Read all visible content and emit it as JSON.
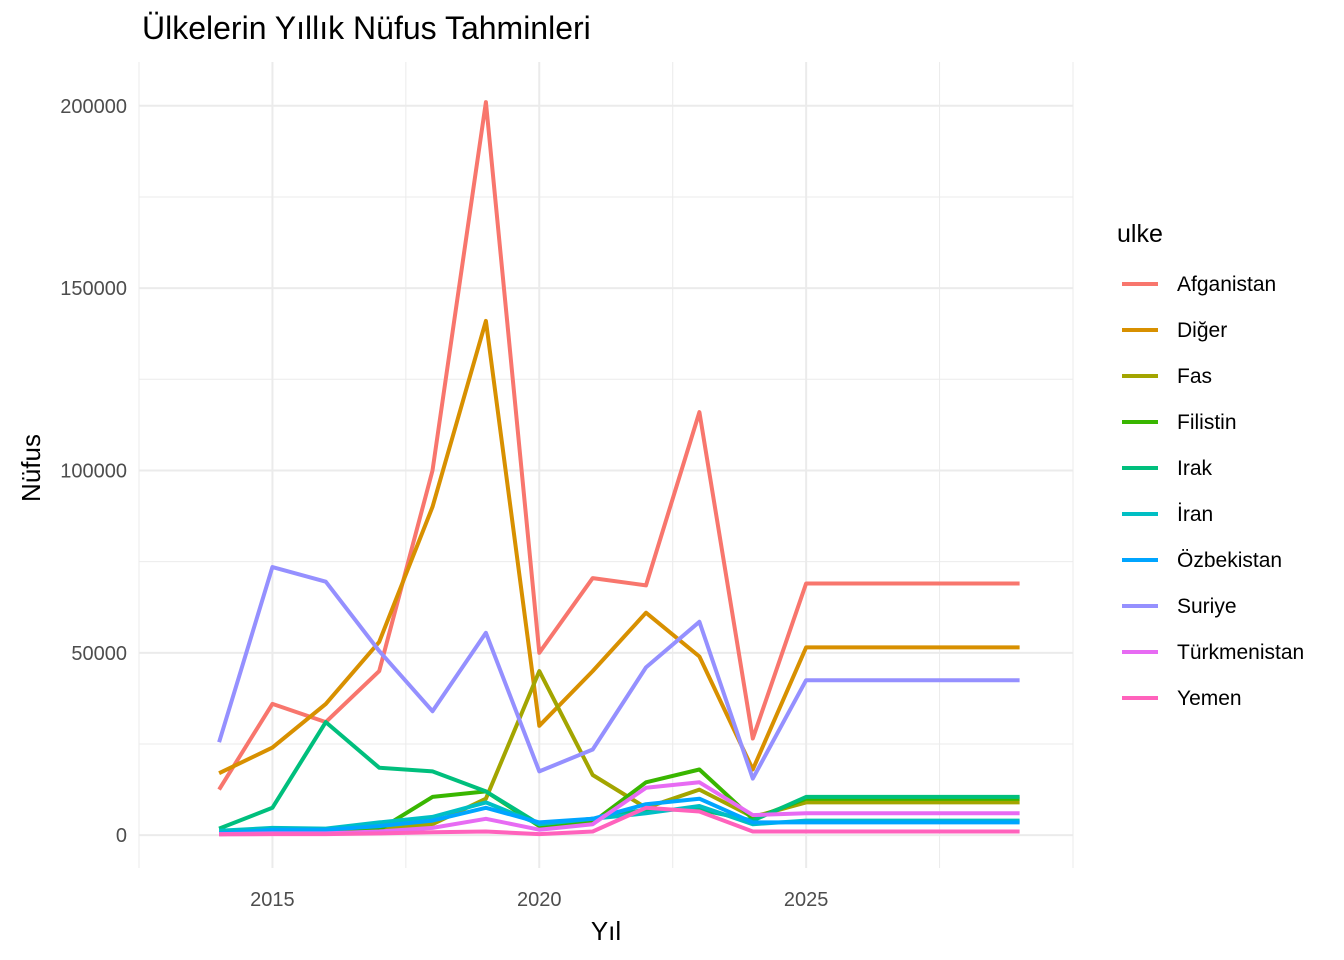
{
  "chart_data": {
    "type": "line",
    "title": "Ülkelerin Yıllık Nüfus Tahminleri",
    "xlabel": "Yıl",
    "ylabel": "Nüfus",
    "xlim": [
      2012.5,
      2030
    ],
    "ylim": [
      -9000,
      212000
    ],
    "x_ticks": [
      2015,
      2020,
      2025
    ],
    "y_ticks": [
      0,
      50000,
      100000,
      150000,
      200000
    ],
    "y_tick_labels": [
      "0",
      "50000",
      "100000",
      "150000",
      "200000"
    ],
    "grid": true,
    "legend_title": "ulke",
    "legend_position": "right",
    "x": [
      2014,
      2015,
      2016,
      2017,
      2018,
      2019,
      2020,
      2021,
      2022,
      2023,
      2024,
      2025,
      2026,
      2027,
      2028,
      2029
    ],
    "series": [
      {
        "name": "Afganistan",
        "color": "#F8766D",
        "values": [
          12500,
          36000,
          31000,
          45000,
          100000,
          201000,
          50000,
          70500,
          68500,
          116000,
          26500,
          69000,
          69000,
          69000,
          69000,
          69000
        ]
      },
      {
        "name": "Diğer",
        "color": "#D89000",
        "values": [
          17000,
          24000,
          36000,
          53000,
          90000,
          141000,
          30000,
          45000,
          61000,
          49000,
          18000,
          51500,
          51500,
          51500,
          51500,
          51500
        ]
      },
      {
        "name": "Fas",
        "color": "#A3A500",
        "values": [
          500,
          800,
          1000,
          1500,
          3000,
          10000,
          45000,
          16500,
          7500,
          12500,
          5000,
          9000,
          9000,
          9000,
          9000,
          9000
        ]
      },
      {
        "name": "Filistin",
        "color": "#39B600",
        "values": [
          300,
          500,
          800,
          1500,
          10500,
          12000,
          2500,
          3500,
          14500,
          18000,
          4500,
          10000,
          10000,
          10000,
          10000,
          10000
        ]
      },
      {
        "name": "Irak",
        "color": "#00BF7D",
        "values": [
          1800,
          7500,
          31000,
          18500,
          17500,
          12000,
          3000,
          4500,
          7000,
          7000,
          4000,
          10500,
          10500,
          10500,
          10500,
          10500
        ]
      },
      {
        "name": "İran",
        "color": "#00BFC4",
        "values": [
          1200,
          2000,
          1800,
          3500,
          5000,
          9000,
          3000,
          4500,
          6000,
          8000,
          3000,
          4000,
          4000,
          4000,
          4000,
          4000
        ]
      },
      {
        "name": "Özbekistan",
        "color": "#00A5FF",
        "values": [
          500,
          1500,
          1500,
          2500,
          4000,
          7500,
          3500,
          4500,
          8500,
          10000,
          3500,
          3500,
          3500,
          3500,
          3500,
          3500
        ]
      },
      {
        "name": "Suriye",
        "color": "#9590FF",
        "values": [
          25500,
          73500,
          69500,
          50500,
          34000,
          55500,
          17500,
          23500,
          46000,
          58500,
          15500,
          42500,
          42500,
          42500,
          42500,
          42500
        ]
      },
      {
        "name": "Türkmenistan",
        "color": "#E76BF3",
        "values": [
          300,
          500,
          500,
          1000,
          2000,
          4500,
          1500,
          3000,
          13000,
          14500,
          5500,
          6000,
          6000,
          6000,
          6000,
          6000
        ]
      },
      {
        "name": "Yemen",
        "color": "#FF62BC",
        "values": [
          200,
          300,
          300,
          500,
          800,
          1000,
          300,
          1000,
          7500,
          6500,
          1000,
          1000,
          1000,
          1000,
          1000,
          1000
        ]
      }
    ]
  }
}
